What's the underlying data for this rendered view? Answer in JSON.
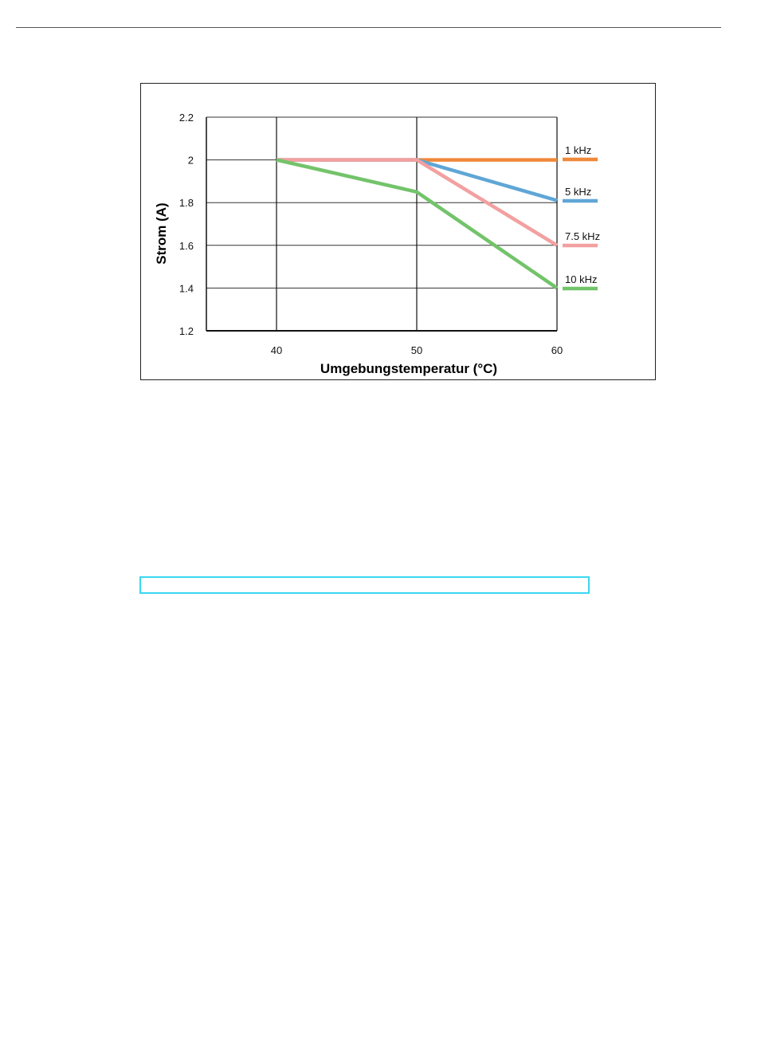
{
  "chart_data": {
    "type": "line",
    "title": "",
    "xlabel": "Umgebungstemperatur (°C)",
    "ylabel": "Strom (A)",
    "xlim": [
      35,
      60
    ],
    "ylim": [
      1.2,
      2.2
    ],
    "x_ticks": [
      "40",
      "50",
      "60"
    ],
    "y_ticks": [
      "2.2",
      "2",
      "1.8",
      "1.6",
      "1.4",
      "1.2"
    ],
    "grid": true,
    "legend_position": "right",
    "series": [
      {
        "name": "1 kHz",
        "color": "#f0883a",
        "points": [
          [
            40,
            2.0
          ],
          [
            50,
            2.0
          ],
          [
            60,
            2.0
          ]
        ]
      },
      {
        "name": "5 kHz",
        "color": "#5fa6d6",
        "points": [
          [
            40,
            2.0
          ],
          [
            50,
            2.0
          ],
          [
            60,
            1.81
          ]
        ]
      },
      {
        "name": "7.5 kHz",
        "color": "#f2a0a0",
        "points": [
          [
            40,
            2.0
          ],
          [
            50,
            2.0
          ],
          [
            60,
            1.6
          ]
        ]
      },
      {
        "name": "10 kHz",
        "color": "#73c36a",
        "points": [
          [
            40,
            2.0
          ],
          [
            50,
            1.85
          ],
          [
            60,
            1.4
          ]
        ]
      }
    ]
  }
}
